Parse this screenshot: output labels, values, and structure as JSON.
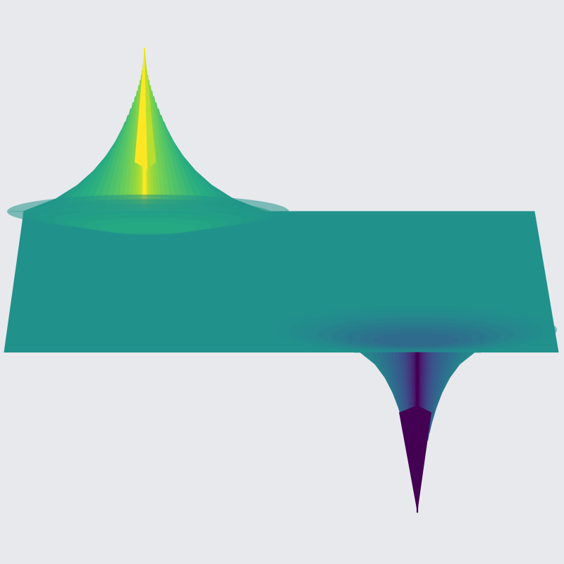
{
  "chart_data": {
    "type": "surface",
    "title": "",
    "xlabel": "",
    "ylabel": "",
    "zlabel": "",
    "colormap": "viridis",
    "axes_visible": false,
    "grid": false,
    "background": "#e8e9ed",
    "surface": {
      "plane_level": 0,
      "peaks": [
        {
          "sign": "positive",
          "x": -0.5,
          "y": 0.5,
          "height": 1.0
        },
        {
          "sign": "negative",
          "x": 0.5,
          "y": -0.5,
          "height": -1.0
        }
      ],
      "z_range": [
        -1.0,
        1.0
      ]
    }
  }
}
